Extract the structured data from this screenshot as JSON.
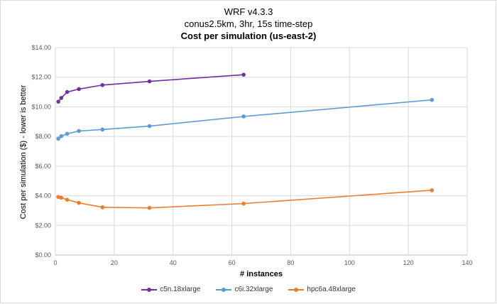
{
  "chart_data": {
    "type": "line",
    "title": [
      "WRF v4.3.3",
      "conus2.5km, 3hr, 15s time-step",
      "Cost per simulation (us-east-2)"
    ],
    "xlabel": "# instances",
    "ylabel": "Cost per simulation ($) - lower is better",
    "xlim": [
      0,
      140
    ],
    "ylim": [
      0,
      14
    ],
    "x_ticks": [
      "0",
      "20",
      "40",
      "60",
      "80",
      "100",
      "120",
      "140"
    ],
    "y_ticks": [
      "$0.00",
      "$2.00",
      "$4.00",
      "$6.00",
      "$8.00",
      "$10.00",
      "$12.00",
      "$14.00"
    ],
    "grid": true,
    "legend_position": "bottom",
    "series": [
      {
        "name": "c5n.18xlarge",
        "color": "#7030a0",
        "x": [
          1,
          2,
          4,
          8,
          16,
          32,
          64
        ],
        "y": [
          10.35,
          10.6,
          11.0,
          11.2,
          11.47,
          11.72,
          12.17
        ]
      },
      {
        "name": "c6i.32xlarge",
        "color": "#5b9bd5",
        "x": [
          1,
          2,
          4,
          8,
          16,
          32,
          64,
          128
        ],
        "y": [
          7.85,
          8.02,
          8.18,
          8.37,
          8.47,
          8.7,
          9.35,
          10.47
        ]
      },
      {
        "name": "hpc6a.48xlarge",
        "color": "#ed7d31",
        "x": [
          1,
          2,
          4,
          8,
          16,
          32,
          64,
          128
        ],
        "y": [
          3.92,
          3.87,
          3.73,
          3.52,
          3.22,
          3.18,
          3.47,
          4.37
        ]
      }
    ]
  }
}
